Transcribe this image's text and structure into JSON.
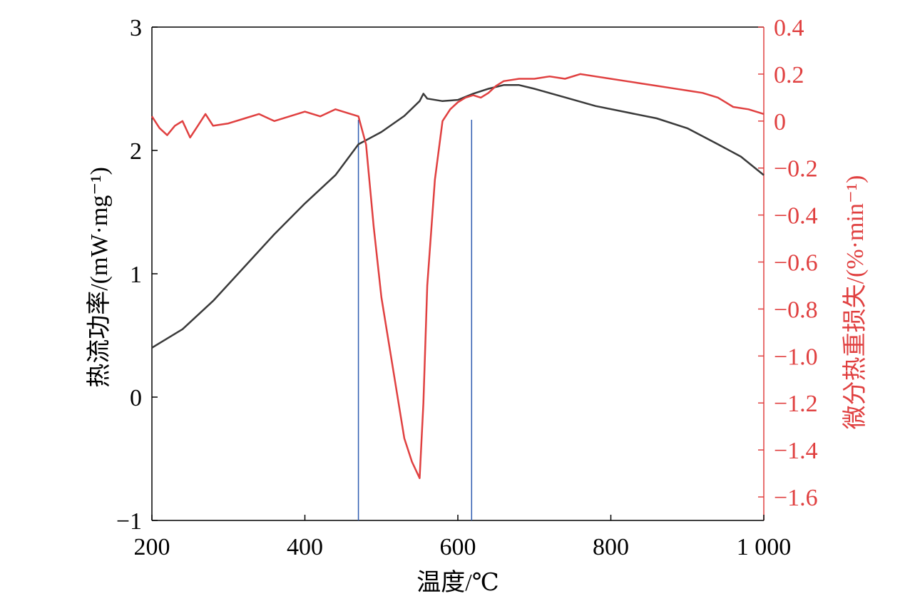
{
  "chart_data": {
    "type": "line",
    "xlabel": "温度/℃",
    "y_left_label": "热流功率/(mW·mg⁻¹)",
    "y_right_label": "微分热重损失/(%·min⁻¹)",
    "xlim": [
      200,
      1000
    ],
    "ylim_left": [
      -1,
      3
    ],
    "ylim_right": [
      -1.7,
      0.4
    ],
    "x_ticks": [
      200,
      400,
      600,
      800,
      1000
    ],
    "x_tick_labels": [
      "200",
      "400",
      "600",
      "800",
      "1 000"
    ],
    "y_left_ticks": [
      -1,
      0,
      1,
      2,
      3
    ],
    "y_left_tick_labels": [
      "−1",
      "0",
      "1",
      "2",
      "3"
    ],
    "y_right_ticks": [
      0.4,
      0.2,
      0,
      -0.2,
      -0.4,
      -0.6,
      -0.8,
      -1.0,
      -1.2,
      -1.4,
      -1.6
    ],
    "y_right_tick_labels": [
      "0.4",
      "0.2",
      "0",
      "−0.2",
      "−0.4",
      "−0.6",
      "−0.8",
      "−1.0",
      "−1.2",
      "−1.4",
      "−1.6"
    ],
    "grid": false,
    "series": [
      {
        "axis": "left",
        "color": "#3a3a3a",
        "x": [
          200,
          240,
          280,
          320,
          360,
          400,
          440,
          470,
          500,
          530,
          550,
          555,
          560,
          580,
          600,
          620,
          640,
          660,
          680,
          700,
          740,
          780,
          820,
          860,
          900,
          940,
          970,
          1000
        ],
        "y": [
          0.4,
          0.55,
          0.78,
          1.05,
          1.32,
          1.57,
          1.8,
          2.05,
          2.15,
          2.28,
          2.4,
          2.46,
          2.42,
          2.4,
          2.41,
          2.46,
          2.5,
          2.53,
          2.53,
          2.5,
          2.43,
          2.36,
          2.31,
          2.26,
          2.18,
          2.05,
          1.95,
          1.8
        ]
      },
      {
        "axis": "right",
        "color": "#e04040",
        "x": [
          200,
          210,
          220,
          230,
          240,
          250,
          260,
          270,
          280,
          300,
          320,
          340,
          360,
          380,
          400,
          420,
          440,
          460,
          470,
          480,
          490,
          500,
          510,
          520,
          530,
          540,
          550,
          555,
          560,
          570,
          580,
          590,
          600,
          610,
          620,
          630,
          640,
          650,
          660,
          680,
          700,
          720,
          740,
          760,
          780,
          800,
          820,
          840,
          860,
          880,
          900,
          920,
          940,
          960,
          980,
          1000
        ],
        "y": [
          0.02,
          -0.03,
          -0.06,
          -0.02,
          0.0,
          -0.07,
          -0.02,
          0.03,
          -0.02,
          -0.01,
          0.01,
          0.03,
          0.0,
          0.02,
          0.04,
          0.02,
          0.05,
          0.03,
          0.02,
          -0.1,
          -0.45,
          -0.75,
          -0.95,
          -1.15,
          -1.35,
          -1.45,
          -1.52,
          -1.2,
          -0.7,
          -0.25,
          0.0,
          0.05,
          0.08,
          0.1,
          0.11,
          0.1,
          0.12,
          0.15,
          0.17,
          0.18,
          0.18,
          0.19,
          0.18,
          0.2,
          0.19,
          0.18,
          0.17,
          0.16,
          0.15,
          0.14,
          0.13,
          0.12,
          0.1,
          0.06,
          0.05,
          0.03
        ]
      }
    ],
    "vertical_markers": {
      "color": "#2f5db0",
      "x": [
        470,
        618
      ]
    },
    "colors": {
      "left_axis": "#000000",
      "right_axis": "#e04040"
    }
  }
}
